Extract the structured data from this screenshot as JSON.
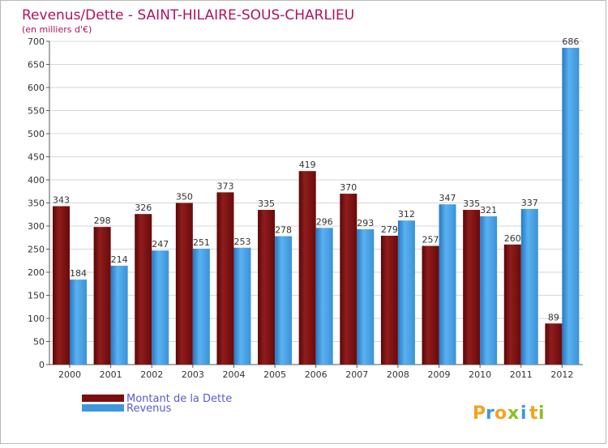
{
  "chart_data": {
    "type": "bar",
    "title": "Revenus/Dette - SAINT-HILAIRE-SOUS-CHARLIEU",
    "subtitle": "(en milliers d'€)",
    "categories": [
      "2000",
      "2001",
      "2002",
      "2003",
      "2004",
      "2005",
      "2006",
      "2007",
      "2008",
      "2009",
      "2010",
      "2011",
      "2012"
    ],
    "series": [
      {
        "name": "Montant de la Dette",
        "color": "#7a0e0e",
        "values": [
          343,
          298,
          326,
          350,
          373,
          335,
          419,
          370,
          279,
          257,
          335,
          260,
          89
        ]
      },
      {
        "name": "Revenus",
        "color": "#3d97dd",
        "values": [
          184,
          214,
          247,
          251,
          253,
          278,
          296,
          293,
          312,
          347,
          321,
          337,
          686
        ]
      }
    ],
    "yticks": [
      0,
      50,
      100,
      150,
      200,
      250,
      300,
      350,
      400,
      450,
      500,
      550,
      600,
      650,
      700
    ],
    "ylim": [
      0,
      700
    ],
    "grid": true,
    "legend_position": "bottom-left",
    "title_color": "#b0125e"
  },
  "brand": {
    "letters": [
      "P",
      "r",
      "o",
      "x",
      "i",
      "t",
      "i"
    ],
    "colors": [
      "#f4a21d",
      "#3d97dd",
      "#f4a21d",
      "#8bbf2a",
      "#3d97dd",
      "#f4a21d",
      "#8bbf2a"
    ]
  }
}
